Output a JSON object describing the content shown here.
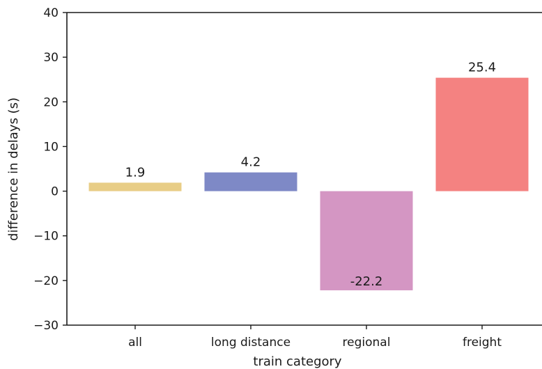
{
  "chart_data": {
    "type": "bar",
    "title": "",
    "xlabel": "train category",
    "ylabel": "difference in delays (s)",
    "categories": [
      "all",
      "long distance",
      "regional",
      "freight"
    ],
    "values": [
      1.9,
      4.2,
      -22.2,
      25.4
    ],
    "data_labels": [
      "1.9",
      "4.2",
      "-22.2",
      "25.4"
    ],
    "colors": [
      "#e8cd86",
      "#7e89c6",
      "#d496c3",
      "#f48281"
    ],
    "ylim": [
      -30,
      40
    ],
    "yticks": [
      -30,
      -20,
      -10,
      0,
      10,
      20,
      30,
      40
    ],
    "ytick_labels": [
      "−30",
      "−20",
      "−10",
      "0",
      "10",
      "20",
      "30",
      "40"
    ],
    "grid": false,
    "legend": "none"
  }
}
